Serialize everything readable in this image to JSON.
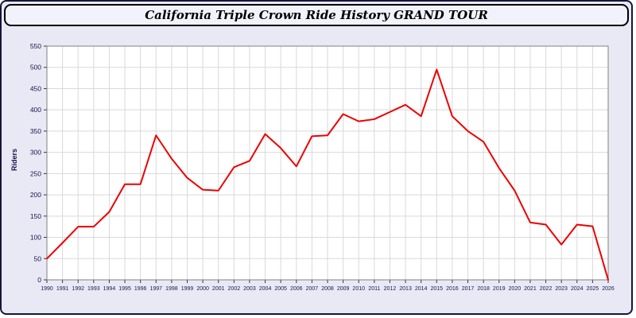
{
  "window": {
    "title": "California Triple Crown Ride History GRAND TOUR"
  },
  "colors": {
    "page_bg": "#e9e9f6",
    "titlebar_bg": "#f2f2fc",
    "plot_bg": "#ffffff",
    "grid": "#d9d9d9",
    "plot_border": "#808080",
    "axis": "#333333",
    "tick_text": "#15154a",
    "line": "#ee0000"
  },
  "chart_data": {
    "type": "line",
    "title": "California Triple Crown Ride History GRAND TOUR",
    "xlabel": "",
    "ylabel": "Riders",
    "ylim": [
      0,
      550
    ],
    "ytick_step": 50,
    "grid": true,
    "legend_position": "none",
    "line_color": "#ee0000",
    "x": [
      1990,
      1991,
      1992,
      1993,
      1994,
      1995,
      1996,
      1997,
      1998,
      1999,
      2000,
      2001,
      2002,
      2003,
      2004,
      2005,
      2006,
      2007,
      2008,
      2009,
      2010,
      2011,
      2012,
      2013,
      2014,
      2015,
      2016,
      2017,
      2018,
      2019,
      2020,
      2021,
      2022,
      2023,
      2024,
      2025,
      2026
    ],
    "values": [
      50,
      87,
      125,
      125,
      160,
      225,
      225,
      340,
      285,
      240,
      212,
      210,
      265,
      280,
      343,
      310,
      267,
      338,
      340,
      390,
      373,
      378,
      395,
      412,
      385,
      495,
      385,
      350,
      325,
      263,
      210,
      135,
      130,
      83,
      130,
      126,
      0
    ]
  }
}
